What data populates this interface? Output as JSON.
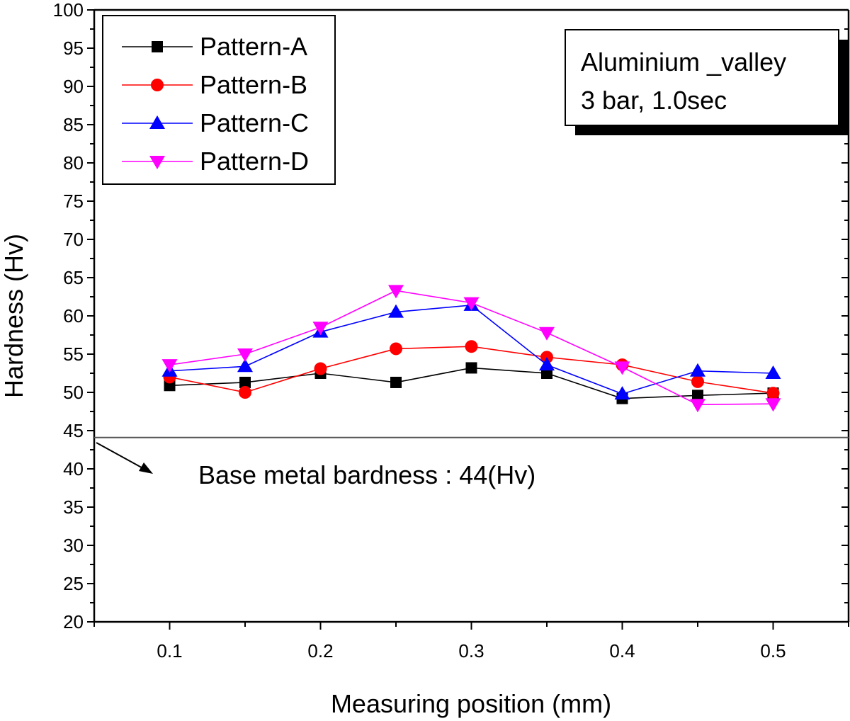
{
  "chart_data": {
    "type": "line",
    "title": "",
    "xlabel": "Measuring position (mm)",
    "ylabel": "Hardness (Hv)",
    "xlim": [
      0.05,
      0.55
    ],
    "ylim": [
      20,
      100
    ],
    "x": [
      0.1,
      0.15,
      0.2,
      0.25,
      0.3,
      0.35,
      0.4,
      0.45,
      0.5
    ],
    "x_ticks": [
      "0.1",
      "0.2",
      "0.3",
      "0.4",
      "0.5"
    ],
    "x_tick_values": [
      0.1,
      0.2,
      0.3,
      0.4,
      0.5
    ],
    "y_ticks": [
      "20",
      "25",
      "30",
      "35",
      "40",
      "45",
      "50",
      "55",
      "60",
      "65",
      "70",
      "75",
      "80",
      "85",
      "90",
      "95",
      "100"
    ],
    "y_tick_values": [
      20,
      25,
      30,
      35,
      40,
      45,
      50,
      55,
      60,
      65,
      70,
      75,
      80,
      85,
      90,
      95,
      100
    ],
    "grid": false,
    "legend_position": "top-left",
    "series": [
      {
        "name": "Pattern-A",
        "color": "#000000",
        "marker": "square",
        "values": [
          50.9,
          51.3,
          52.5,
          51.3,
          53.2,
          52.5,
          49.2,
          49.6,
          49.9
        ]
      },
      {
        "name": "Pattern-B",
        "color": "#ff0000",
        "marker": "circle",
        "values": [
          52.0,
          50.0,
          53.1,
          55.7,
          56.0,
          54.6,
          53.6,
          51.4,
          49.9
        ]
      },
      {
        "name": "Pattern-C",
        "color": "#0000ff",
        "marker": "triangle-up",
        "values": [
          52.8,
          53.4,
          57.9,
          60.5,
          61.4,
          53.6,
          49.8,
          52.8,
          52.5
        ]
      },
      {
        "name": "Pattern-D",
        "color": "#ff00ff",
        "marker": "triangle-down",
        "values": [
          53.6,
          55.0,
          58.5,
          63.3,
          61.7,
          57.8,
          53.3,
          48.4,
          48.5
        ]
      }
    ],
    "annotation_box": {
      "line1": "Aluminium _valley",
      "line2": "3 bar, 1.0sec"
    },
    "reference_line": {
      "value": 44,
      "label": "Base metal bardness : 44(Hv)"
    }
  }
}
